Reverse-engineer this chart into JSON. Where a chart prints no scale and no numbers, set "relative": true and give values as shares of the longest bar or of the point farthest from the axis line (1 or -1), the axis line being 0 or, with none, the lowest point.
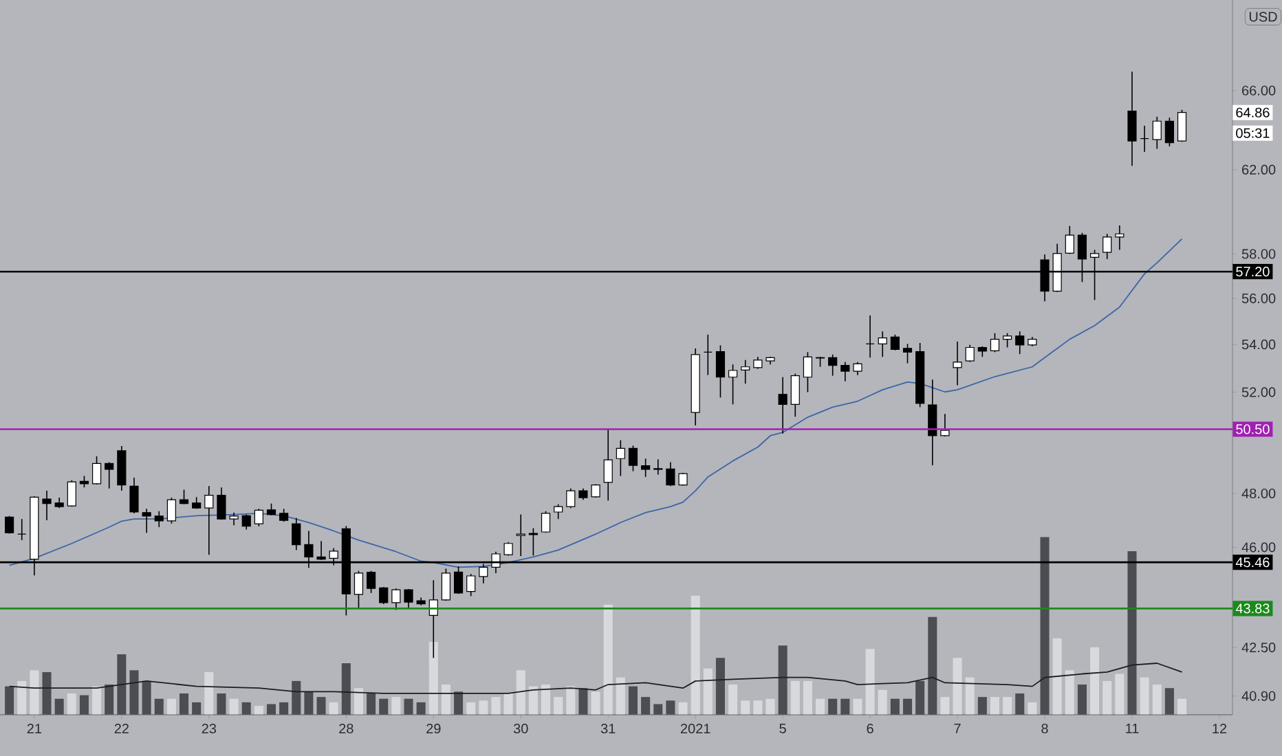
{
  "chart_data": [
    {
      "type": "candlestick",
      "categories": [
        null,
        null,
        "21",
        null,
        null,
        null,
        null,
        null,
        null,
        "22",
        null,
        null,
        null,
        null,
        null,
        null,
        "23",
        null,
        null,
        null,
        null,
        null,
        null,
        null,
        null,
        null,
        null,
        "28",
        null,
        null,
        null,
        null,
        null,
        null,
        "29",
        null,
        null,
        null,
        null,
        null,
        null,
        "30",
        null,
        null,
        null,
        null,
        null,
        null,
        "31",
        null,
        null,
        null,
        null,
        null,
        null,
        "2021",
        null,
        null,
        null,
        null,
        null,
        null,
        "5",
        null,
        null,
        null,
        null,
        null,
        null,
        "6",
        null,
        null,
        null,
        null,
        null,
        null,
        "7",
        null,
        null,
        null,
        null,
        null,
        null,
        "8",
        null,
        null,
        null,
        null,
        null,
        null,
        "11",
        null,
        null,
        null,
        null,
        null,
        null,
        "12"
      ],
      "ohlc": [
        [
          47.11,
          47.15,
          46.5,
          46.53
        ],
        [
          46.48,
          47.04,
          46.26,
          46.48
        ],
        [
          45.57,
          47.89,
          44.99,
          47.86
        ],
        [
          47.79,
          48.1,
          46.99,
          47.62
        ],
        [
          47.64,
          47.84,
          47.45,
          47.5
        ],
        [
          47.53,
          48.5,
          47.5,
          48.44
        ],
        [
          48.46,
          48.67,
          48.23,
          48.37
        ],
        [
          48.37,
          49.43,
          48.34,
          49.15
        ],
        [
          49.15,
          49.2,
          48.19,
          48.92
        ],
        [
          49.65,
          49.83,
          48.1,
          48.32
        ],
        [
          48.28,
          48.6,
          47.25,
          47.3
        ],
        [
          47.28,
          47.42,
          46.53,
          47.15
        ],
        [
          47.15,
          47.33,
          46.74,
          46.97
        ],
        [
          46.97,
          47.84,
          46.87,
          47.76
        ],
        [
          47.76,
          48.14,
          47.59,
          47.62
        ],
        [
          47.64,
          47.86,
          47.42,
          47.45
        ],
        [
          47.45,
          48.28,
          45.73,
          47.93
        ],
        [
          47.93,
          48.23,
          47.01,
          47.04
        ],
        [
          47.04,
          47.28,
          46.81,
          47.15
        ],
        [
          47.16,
          47.21,
          46.65,
          46.77
        ],
        [
          46.86,
          47.42,
          46.77,
          47.37
        ],
        [
          47.38,
          47.62,
          47.18,
          47.21
        ],
        [
          47.25,
          47.42,
          46.94,
          46.99
        ],
        [
          46.86,
          47.08,
          45.9,
          46.09
        ],
        [
          46.1,
          46.6,
          45.26,
          45.65
        ],
        [
          45.65,
          46.23,
          45.54,
          45.57
        ],
        [
          45.6,
          45.97,
          45.35,
          45.86
        ],
        [
          46.68,
          46.78,
          43.59,
          44.34
        ],
        [
          44.32,
          45.15,
          43.86,
          45.07
        ],
        [
          45.1,
          45.15,
          44.37,
          44.53
        ],
        [
          44.55,
          44.58,
          43.98,
          44.03
        ],
        [
          44.03,
          44.53,
          43.78,
          44.48
        ],
        [
          44.48,
          44.51,
          43.86,
          44.05
        ],
        [
          44.1,
          44.21,
          43.94,
          43.99
        ],
        [
          43.59,
          44.82,
          42.15,
          44.13
        ],
        [
          44.13,
          45.23,
          44.1,
          45.07
        ],
        [
          45.11,
          45.31,
          44.34,
          44.37
        ],
        [
          44.42,
          45.04,
          44.26,
          44.97
        ],
        [
          44.95,
          45.4,
          44.71,
          45.28
        ],
        [
          45.28,
          45.84,
          45.07,
          45.76
        ],
        [
          45.73,
          46.19,
          45.7,
          46.14
        ],
        [
          46.43,
          47.21,
          45.68,
          46.48
        ],
        [
          46.51,
          46.7,
          45.7,
          46.46
        ],
        [
          46.56,
          47.33,
          46.53,
          47.25
        ],
        [
          47.3,
          47.59,
          47.04,
          47.5
        ],
        [
          47.5,
          48.19,
          47.45,
          48.1
        ],
        [
          48.1,
          48.19,
          47.76,
          47.84
        ],
        [
          47.87,
          48.35,
          47.84,
          48.32
        ],
        [
          48.42,
          50.5,
          47.73,
          49.29
        ],
        [
          49.34,
          50.06,
          48.67,
          49.74
        ],
        [
          49.74,
          49.85,
          48.85,
          49.08
        ],
        [
          49.06,
          49.34,
          48.63,
          48.92
        ],
        [
          48.95,
          49.31,
          48.72,
          48.92
        ],
        [
          48.94,
          49.2,
          48.28,
          48.32
        ],
        [
          48.32,
          48.79,
          48.3,
          48.76
        ],
        [
          51.17,
          53.83,
          50.65,
          53.57
        ],
        [
          53.67,
          54.42,
          52.71,
          53.67
        ],
        [
          53.69,
          53.96,
          51.78,
          52.62
        ],
        [
          52.62,
          53.15,
          51.5,
          52.9
        ],
        [
          52.92,
          53.34,
          52.35,
          53.05
        ],
        [
          53.02,
          53.47,
          52.96,
          53.34
        ],
        [
          53.3,
          53.47,
          53.15,
          53.44
        ],
        [
          51.91,
          52.62,
          50.33,
          51.5
        ],
        [
          51.5,
          52.77,
          51.0,
          52.68
        ],
        [
          52.62,
          53.67,
          52.0,
          53.47
        ],
        [
          53.44,
          53.47,
          53.05,
          53.42
        ],
        [
          53.44,
          53.57,
          52.68,
          53.11
        ],
        [
          53.11,
          53.25,
          52.45,
          52.87
        ],
        [
          52.87,
          53.25,
          52.71,
          53.18
        ],
        [
          54.02,
          55.25,
          53.44,
          54.02
        ],
        [
          54.02,
          54.56,
          53.47,
          54.28
        ],
        [
          54.32,
          54.42,
          53.75,
          53.79
        ],
        [
          53.83,
          54.02,
          53.2,
          53.67
        ],
        [
          53.69,
          54.06,
          51.39,
          51.54
        ],
        [
          51.48,
          52.52,
          49.08,
          50.24
        ],
        [
          50.24,
          51.11,
          50.21,
          50.45
        ],
        [
          53.02,
          54.12,
          52.29,
          53.25
        ],
        [
          53.3,
          53.98,
          53.25,
          53.87
        ],
        [
          53.87,
          53.92,
          53.47,
          53.71
        ],
        [
          53.73,
          54.48,
          53.67,
          54.22
        ],
        [
          54.22,
          54.48,
          53.87,
          54.36
        ],
        [
          54.36,
          54.56,
          53.59,
          53.98
        ],
        [
          53.98,
          54.32,
          53.92,
          54.22
        ],
        [
          57.73,
          57.98,
          55.87,
          56.32
        ],
        [
          56.32,
          58.47,
          56.29,
          58.02
        ],
        [
          58.04,
          59.3,
          58.0,
          58.87
        ],
        [
          58.87,
          58.98,
          56.73,
          57.77
        ],
        [
          57.85,
          58.19,
          55.93,
          58.02
        ],
        [
          58.08,
          58.93,
          57.77,
          58.78
        ],
        [
          58.78,
          59.32,
          58.19,
          58.93
        ],
        [
          64.93,
          66.99,
          62.19,
          63.42
        ],
        [
          63.54,
          64.18,
          62.87,
          63.54
        ],
        [
          63.49,
          64.65,
          63.03,
          64.42
        ],
        [
          64.42,
          64.6,
          63.15,
          63.33
        ],
        [
          63.42,
          65.0,
          63.38,
          64.86
        ],
        null,
        null,
        null
      ],
      "series": [
        {
          "type": "line",
          "color": "#3d64a8",
          "values": [
            45.35,
            null,
            45.6,
            null,
            null,
            46.14,
            null,
            null,
            46.74,
            46.96,
            47.04,
            null,
            47.04,
            null,
            null,
            47.16,
            null,
            null,
            47.21,
            null,
            47.25,
            null,
            47.16,
            null,
            46.91,
            null,
            46.6,
            null,
            46.26,
            null,
            null,
            45.84,
            null,
            45.5,
            45.45,
            null,
            45.28,
            null,
            45.31,
            null,
            45.45,
            null,
            45.65,
            null,
            45.9,
            null,
            null,
            46.48,
            null,
            46.91,
            null,
            47.28,
            null,
            47.5,
            47.67,
            48.1,
            48.63,
            null,
            49.25,
            null,
            49.79,
            50.24,
            50.37,
            null,
            50.98,
            null,
            51.39,
            null,
            51.63,
            null,
            52.1,
            null,
            52.42,
            52.36,
            null,
            52.01,
            52.1,
            null,
            null,
            52.64,
            null,
            null,
            53.05,
            null,
            53.83,
            54.22,
            null,
            54.81,
            null,
            55.62,
            null,
            57.1,
            57.6,
            null,
            58.7,
            null,
            null,
            null
          ]
        }
      ],
      "ylim": [
        40.3,
        70.9
      ],
      "yticks": [
        {
          "value": 40.9,
          "label": "40.90"
        },
        {
          "value": 42.5,
          "label": "42.50"
        },
        {
          "value": 46,
          "label": "46.00"
        },
        {
          "value": 48,
          "label": "48.00"
        },
        {
          "value": 52,
          "label": "52.00"
        },
        {
          "value": 54,
          "label": "54.00"
        },
        {
          "value": 56,
          "label": "56.00"
        },
        {
          "value": 58,
          "label": "58.00"
        },
        {
          "value": 62,
          "label": "62.00"
        },
        {
          "value": 66,
          "label": "66.00"
        }
      ],
      "log": "y",
      "ref_lines": [
        {
          "axis": "y",
          "value": 57.2,
          "label": "57.20",
          "color": "#000000"
        },
        {
          "axis": "y",
          "value": 50.5,
          "label": "50.50",
          "color": "#a020b0"
        },
        {
          "axis": "y",
          "value": 45.46,
          "label": "45.46",
          "color": "#000000"
        },
        {
          "axis": "y",
          "value": 43.83,
          "label": "43.83",
          "color": "#1b8a1b"
        }
      ],
      "annotations": [
        "USD",
        {
          "text": "64.86",
          "y": 64.86
        },
        "05:31"
      ]
    },
    {
      "type": "bar",
      "relative": true,
      "tick_labels": false,
      "categories": [
        null,
        null,
        "21",
        null,
        null,
        null,
        null,
        null,
        null,
        "22",
        null,
        null,
        null,
        null,
        null,
        null,
        "23",
        null,
        null,
        null,
        null,
        null,
        null,
        null,
        null,
        null,
        null,
        "28",
        null,
        null,
        null,
        null,
        null,
        null,
        "29",
        null,
        null,
        null,
        null,
        null,
        null,
        "30",
        null,
        null,
        null,
        null,
        null,
        null,
        "31",
        null,
        null,
        null,
        null,
        null,
        null,
        "2021",
        null,
        null,
        null,
        null,
        null,
        null,
        "5",
        null,
        null,
        null,
        null,
        null,
        null,
        "6",
        null,
        null,
        null,
        null,
        null,
        null,
        "7",
        null,
        null,
        null,
        null,
        null,
        null,
        "8",
        null,
        null,
        null,
        null,
        null,
        null,
        "11",
        null,
        null,
        null,
        null,
        null,
        null,
        "12"
      ],
      "series": [
        {
          "type": "bar",
          "values": [
            0.16,
            0.19,
            0.25,
            0.24,
            0.09,
            0.12,
            0.11,
            0.16,
            0.17,
            0.34,
            0.25,
            0.19,
            0.09,
            0.09,
            0.12,
            0.07,
            0.24,
            0.12,
            0.09,
            0.07,
            0.05,
            0.06,
            0.07,
            0.19,
            0.13,
            0.1,
            0.07,
            0.29,
            0.15,
            0.12,
            0.09,
            0.1,
            0.09,
            0.07,
            0.41,
            0.17,
            0.13,
            0.07,
            0.08,
            0.1,
            0.12,
            0.25,
            0.16,
            0.17,
            0.1,
            0.16,
            0.15,
            0.13,
            0.62,
            0.21,
            0.16,
            0.1,
            0.06,
            0.08,
            0.07,
            0.67,
            0.26,
            0.32,
            0.17,
            0.08,
            0.08,
            0.09,
            0.39,
            0.19,
            0.19,
            0.09,
            0.09,
            0.09,
            0.09,
            0.37,
            0.14,
            0.09,
            0.09,
            0.19,
            0.55,
            0.1,
            0.32,
            0.21,
            0.1,
            0.1,
            0.1,
            0.12,
            0.07,
            1,
            0.43,
            0.25,
            0.17,
            0.38,
            0.19,
            0.23,
            0.92,
            0.21,
            0.17,
            0.15,
            0.09,
            null,
            null,
            null
          ],
          "colors": [
            "#4b4d53",
            "#d8d9dc",
            "#d8d9dc",
            "#4b4d53",
            "#4b4d53",
            "#d8d9dc",
            "#4b4d53",
            "#d8d9dc",
            "#4b4d53",
            "#4b4d53",
            "#4b4d53",
            "#4b4d53",
            "#4b4d53",
            "#d8d9dc",
            "#4b4d53",
            "#4b4d53",
            "#d8d9dc",
            "#4b4d53",
            "#d8d9dc",
            "#4b4d53",
            "#d8d9dc",
            "#4b4d53",
            "#4b4d53",
            "#4b4d53",
            "#4b4d53",
            "#4b4d53",
            "#d8d9dc",
            "#4b4d53",
            "#d8d9dc",
            "#4b4d53",
            "#4b4d53",
            "#d8d9dc",
            "#4b4d53",
            "#4b4d53",
            "#d8d9dc",
            "#d8d9dc",
            "#4b4d53",
            "#d8d9dc",
            "#d8d9dc",
            "#d8d9dc",
            "#d8d9dc",
            "#d8d9dc",
            "#d8d9dc",
            "#d8d9dc",
            "#d8d9dc",
            "#d8d9dc",
            "#4b4d53",
            "#d8d9dc",
            "#d8d9dc",
            "#d8d9dc",
            "#4b4d53",
            "#4b4d53",
            "#4b4d53",
            "#4b4d53",
            "#d8d9dc",
            "#d8d9dc",
            "#d8d9dc",
            "#4b4d53",
            "#d8d9dc",
            "#d8d9dc",
            "#d8d9dc",
            "#d8d9dc",
            "#4b4d53",
            "#d8d9dc",
            "#d8d9dc",
            "#d8d9dc",
            "#4b4d53",
            "#4b4d53",
            "#d8d9dc",
            "#d8d9dc",
            "#d8d9dc",
            "#4b4d53",
            "#4b4d53",
            "#4b4d53",
            "#4b4d53",
            "#d8d9dc",
            "#d8d9dc",
            "#d8d9dc",
            "#4b4d53",
            "#d8d9dc",
            "#d8d9dc",
            "#4b4d53",
            "#d8d9dc",
            "#4b4d53",
            "#d8d9dc",
            "#d8d9dc",
            "#4b4d53",
            "#d8d9dc",
            "#d8d9dc",
            "#d8d9dc",
            "#4b4d53",
            "#d8d9dc",
            "#d8d9dc",
            "#4b4d53",
            "#d8d9dc",
            null,
            null,
            null
          ]
        },
        {
          "type": "line",
          "color": "#1c1d20",
          "values": [
            0.16,
            null,
            0.15,
            null,
            null,
            null,
            null,
            0.15,
            0.16,
            null,
            null,
            0.19,
            null,
            null,
            null,
            0.16,
            null,
            null,
            null,
            null,
            0.15,
            null,
            null,
            0.13,
            null,
            null,
            0.13,
            null,
            null,
            null,
            0.12,
            null,
            0.12,
            null,
            null,
            0.12,
            0.12,
            null,
            null,
            null,
            0.12,
            null,
            0.14,
            null,
            null,
            0.15,
            null,
            0.14,
            0.17,
            null,
            null,
            0.18,
            null,
            null,
            0.15,
            0.19,
            null,
            null,
            0.2,
            null,
            null,
            null,
            0.21,
            null,
            0.21,
            null,
            null,
            0.19,
            0.17,
            null,
            null,
            null,
            0.18,
            null,
            0.21,
            0.18,
            null,
            null,
            null,
            null,
            0.17,
            null,
            0.16,
            0.21,
            null,
            null,
            0.23,
            null,
            0.24,
            null,
            0.28,
            null,
            0.29,
            null,
            0.24,
            null,
            null,
            null
          ]
        }
      ]
    }
  ]
}
